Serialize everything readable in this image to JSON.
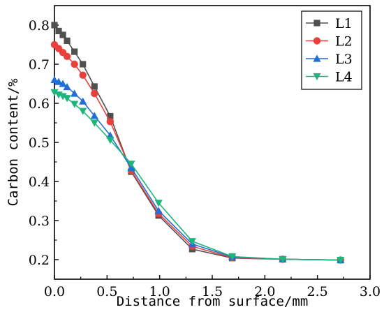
{
  "chart_data": {
    "type": "line",
    "xlabel": "Distance from surface/mm",
    "ylabel": "Carbon content/%",
    "xlim": [
      0,
      3.0
    ],
    "ylim": [
      0.15,
      0.85
    ],
    "x_ticks": [
      "0.0",
      "0.5",
      "1.0",
      "1.5",
      "2.0",
      "2.5",
      "3.0"
    ],
    "y_ticks": [
      "0.2",
      "0.3",
      "0.4",
      "0.5",
      "0.6",
      "0.7",
      "0.8"
    ],
    "grid": false,
    "legend_position": "top-right",
    "series": [
      {
        "name": "L1",
        "color": "#505050",
        "marker": "square",
        "x": [
          0.0,
          0.04,
          0.08,
          0.12,
          0.19,
          0.27,
          0.38,
          0.53,
          0.73,
          0.99,
          1.31,
          1.69,
          2.17,
          2.72
        ],
        "y": [
          0.8,
          0.785,
          0.775,
          0.76,
          0.732,
          0.7,
          0.643,
          0.567,
          0.425,
          0.313,
          0.227,
          0.204,
          0.201,
          0.199
        ]
      },
      {
        "name": "L2",
        "color": "#e8403a",
        "marker": "circle",
        "x": [
          0.0,
          0.04,
          0.08,
          0.12,
          0.19,
          0.27,
          0.38,
          0.53,
          0.73,
          0.99,
          1.31,
          1.69,
          2.17,
          2.72
        ],
        "y": [
          0.75,
          0.74,
          0.73,
          0.72,
          0.7,
          0.672,
          0.625,
          0.553,
          0.428,
          0.318,
          0.234,
          0.205,
          0.201,
          0.199
        ]
      },
      {
        "name": "L3",
        "color": "#1f6fd6",
        "marker": "triangle-up",
        "x": [
          0.0,
          0.04,
          0.08,
          0.12,
          0.19,
          0.27,
          0.38,
          0.53,
          0.73,
          0.99,
          1.31,
          1.69,
          2.17,
          2.72
        ],
        "y": [
          0.66,
          0.655,
          0.65,
          0.642,
          0.625,
          0.605,
          0.568,
          0.518,
          0.435,
          0.325,
          0.24,
          0.207,
          0.201,
          0.199
        ]
      },
      {
        "name": "L4",
        "color": "#1db67a",
        "marker": "triangle-down",
        "x": [
          0.0,
          0.04,
          0.08,
          0.12,
          0.19,
          0.27,
          0.38,
          0.53,
          0.73,
          0.99,
          1.31,
          1.69,
          2.17,
          2.72
        ],
        "y": [
          0.628,
          0.622,
          0.618,
          0.613,
          0.598,
          0.58,
          0.55,
          0.506,
          0.445,
          0.345,
          0.247,
          0.208,
          0.201,
          0.199
        ]
      }
    ]
  }
}
